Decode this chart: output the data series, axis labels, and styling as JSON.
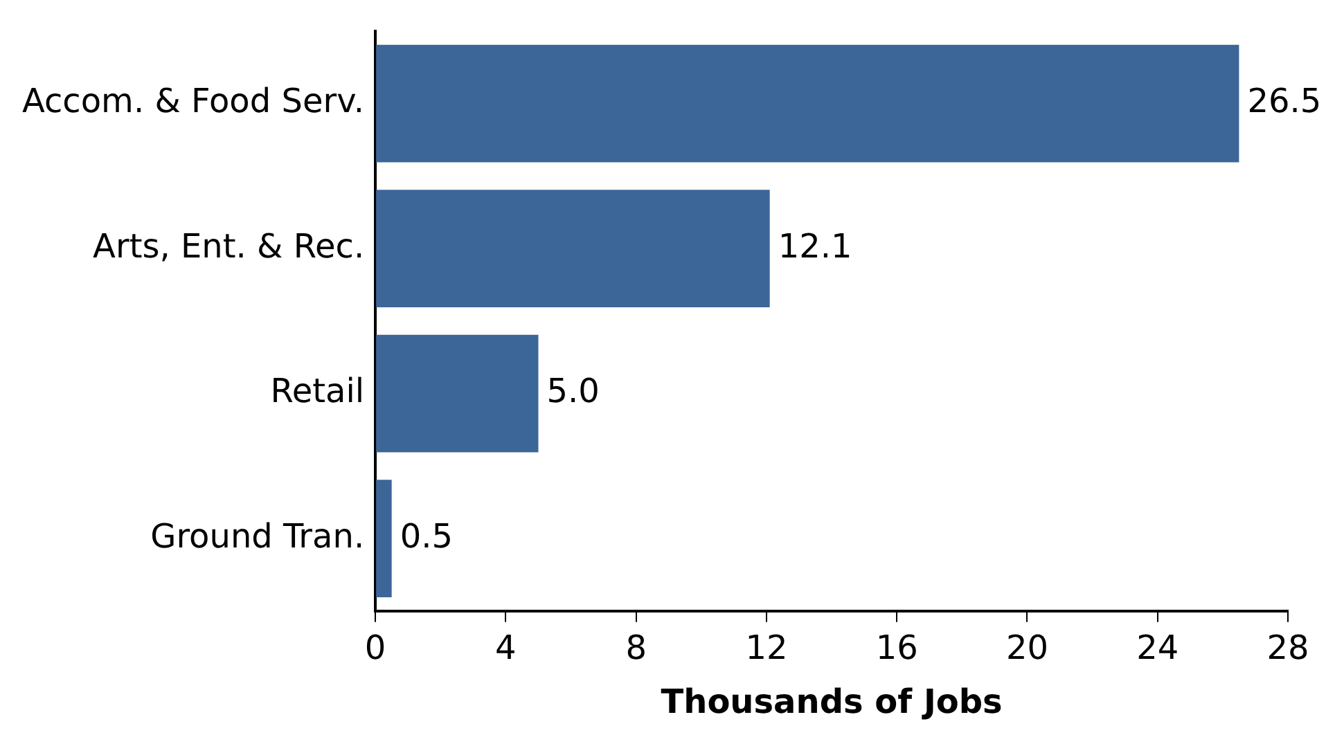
{
  "chart_data": {
    "type": "bar",
    "orientation": "horizontal",
    "xlabel": "Thousands of Jobs",
    "categories": [
      "Accom. & Food Serv.",
      "Arts, Ent. & Rec.",
      "Retail",
      "Ground Tran."
    ],
    "values": [
      26.5,
      12.1,
      5.0,
      0.5
    ],
    "value_labels": [
      "26.5",
      "12.1",
      "5.0",
      "0.5"
    ],
    "color": "#3c6698",
    "xlim": [
      0,
      28
    ],
    "xticks": [
      0,
      4,
      8,
      12,
      16,
      20,
      24,
      28
    ],
    "grid": false,
    "legend": false
  }
}
